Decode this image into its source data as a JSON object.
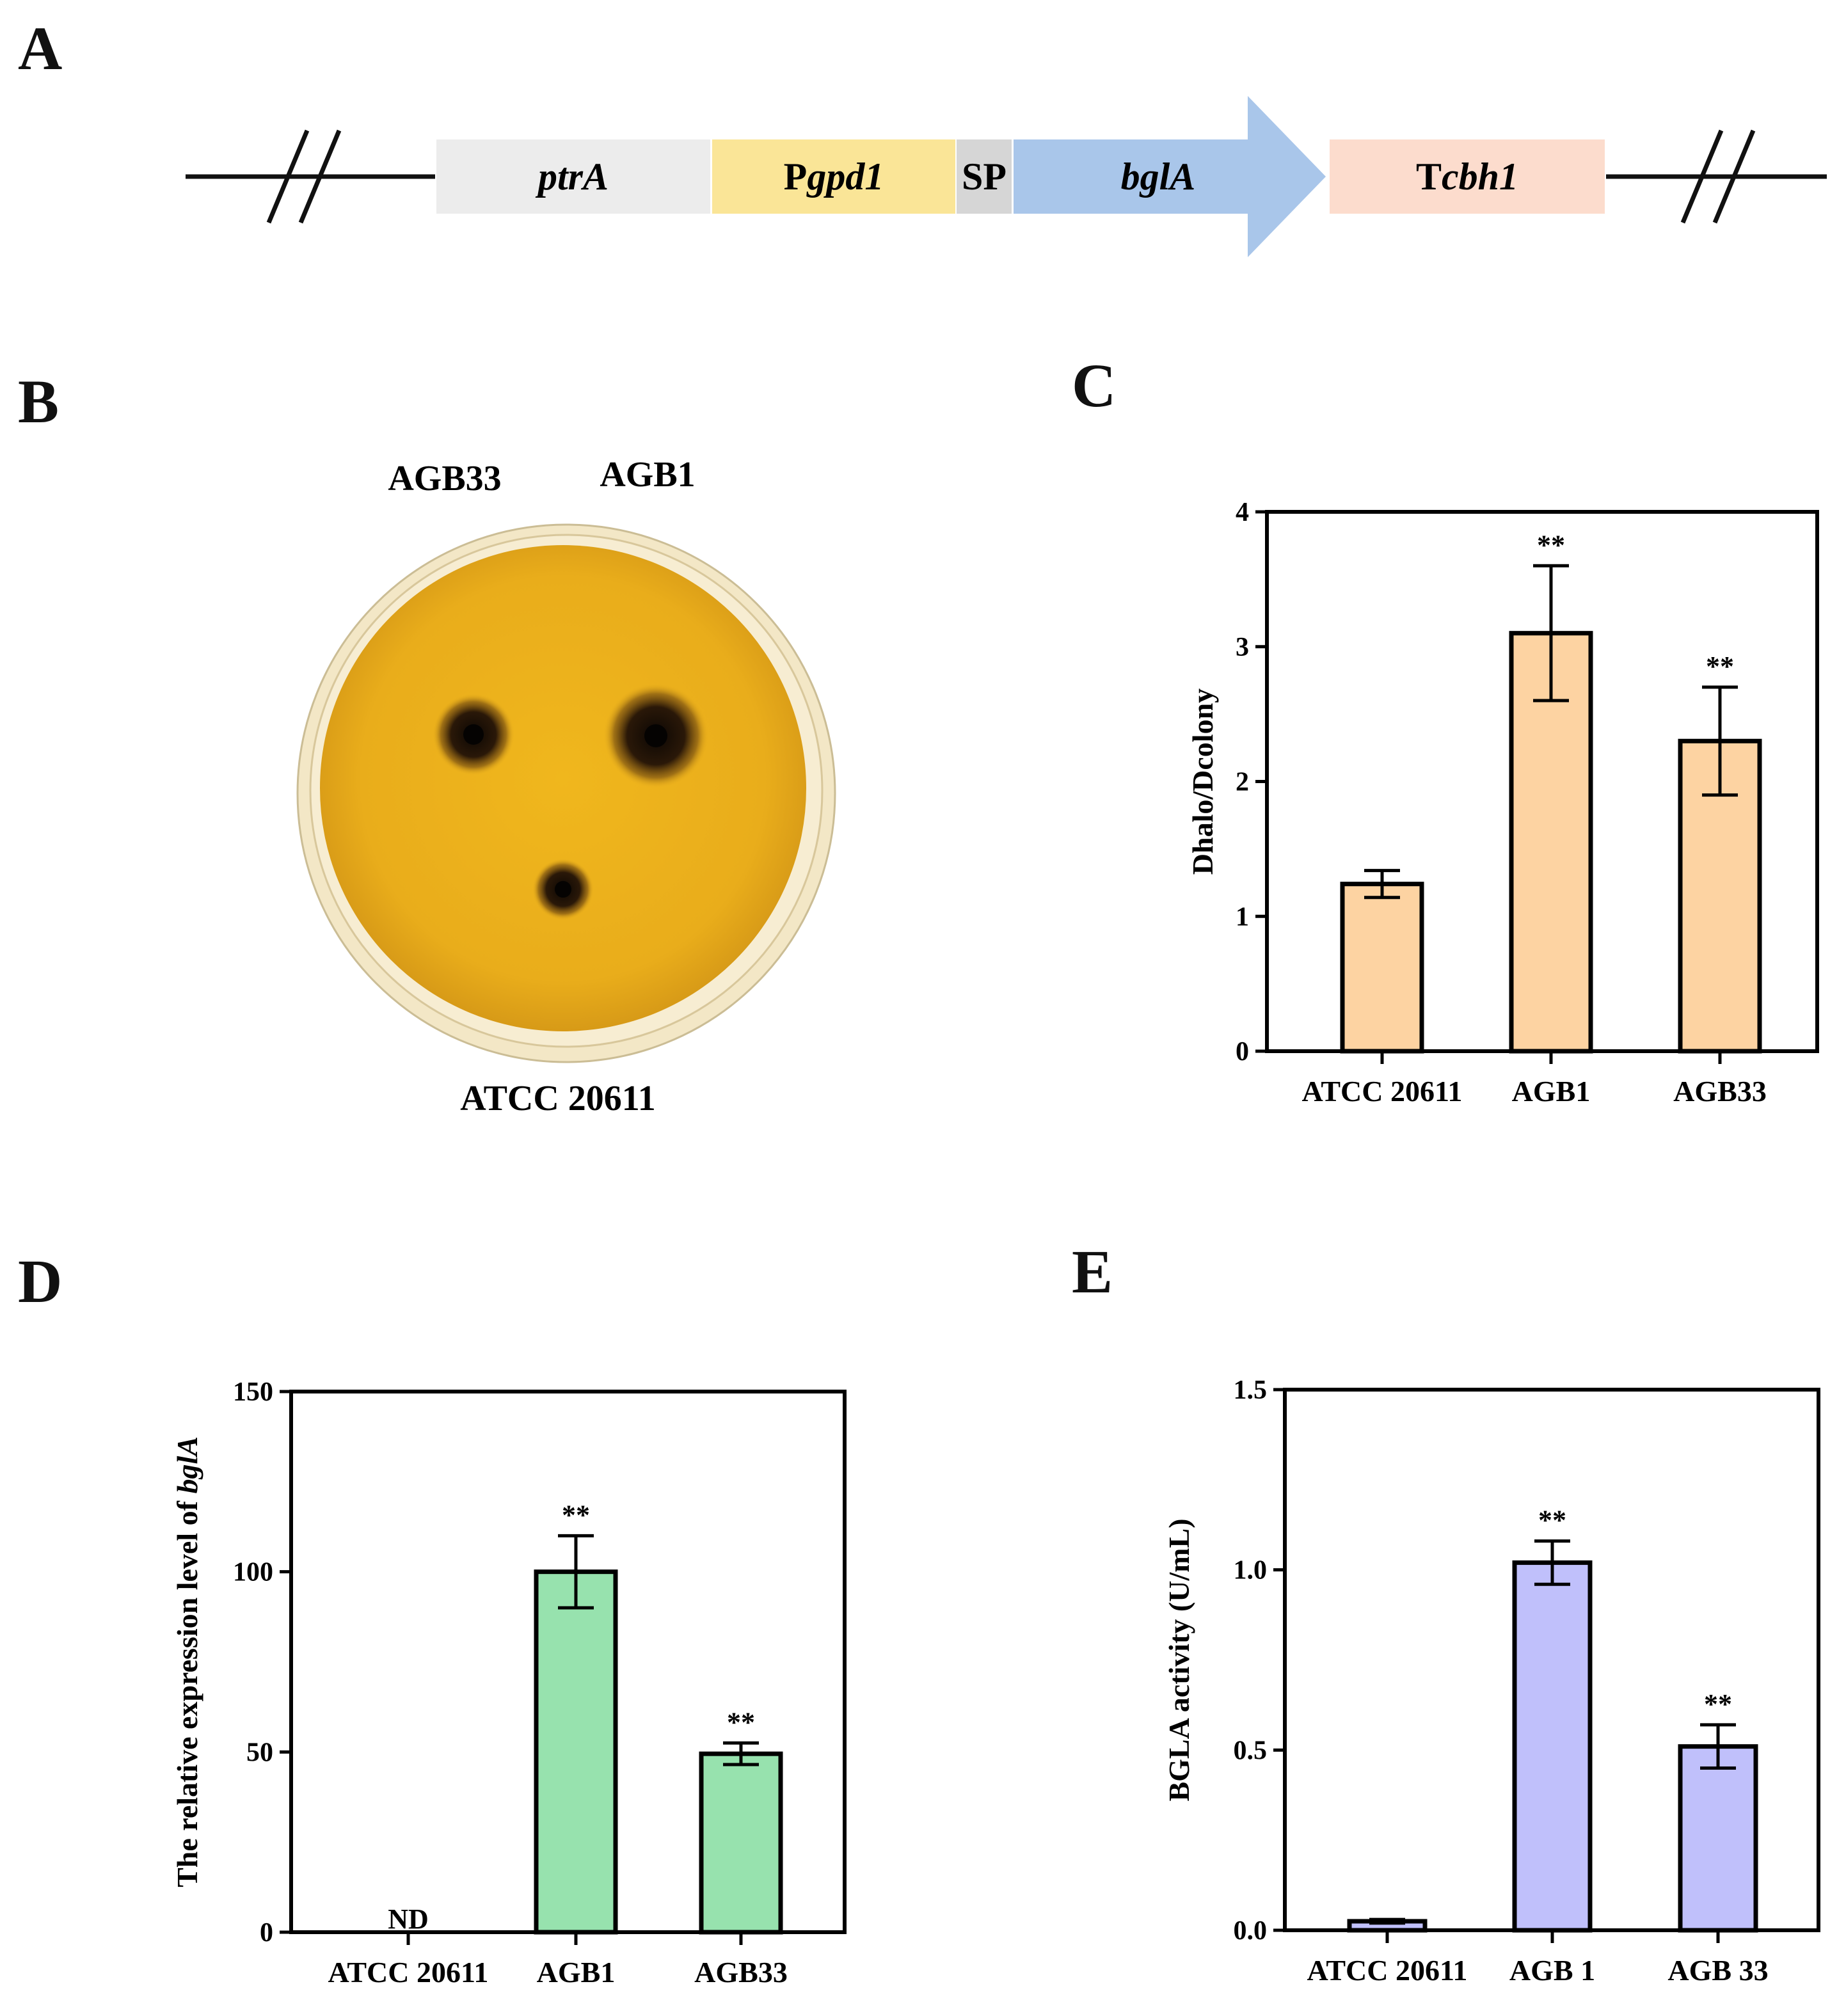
{
  "panels": {
    "a": "A",
    "b": "B",
    "c": "C",
    "d": "D",
    "e": "E"
  },
  "construct": {
    "segments": [
      {
        "name": "ptrA",
        "prefix": "",
        "italic": "ptrA",
        "color": "#ececec"
      },
      {
        "name": "Pgpd1",
        "prefix": "P",
        "italic": "gpd1",
        "color": "#fae597"
      },
      {
        "name": "SP",
        "prefix": "SP",
        "italic": "",
        "color": "#d6d6d6"
      },
      {
        "name": "bglA",
        "prefix": "",
        "italic": "bglA",
        "color": "#a9c6ea"
      },
      {
        "name": "Tcbh1",
        "prefix": "T",
        "italic": "cbh1",
        "color": "#fcdccd"
      }
    ],
    "line_color": "#111111"
  },
  "plate": {
    "labels": {
      "agb33": "AGB33",
      "agb1": "AGB1",
      "atcc": "ATCC 20611"
    },
    "agar_color": "#e5ad1c",
    "halo_color": "#1a1208"
  },
  "chart_data": [
    {
      "panel": "C",
      "type": "bar",
      "categories": [
        "ATCC 20611",
        "AGB1",
        "AGB33"
      ],
      "values": [
        1.24,
        3.1,
        2.3
      ],
      "errors": [
        0.1,
        0.5,
        0.4
      ],
      "significance": [
        "",
        "**",
        "**"
      ],
      "ylabel": "Dhalo/Dcolony",
      "ylim": [
        0,
        4
      ],
      "yticks": [
        "0",
        "1",
        "2",
        "3",
        "4"
      ],
      "ytick_values": [
        0,
        1,
        2,
        3,
        4
      ],
      "bar_color": "#fdd3a2"
    },
    {
      "panel": "D",
      "type": "bar",
      "categories": [
        "ATCC 20611",
        "AGB1",
        "AGB33"
      ],
      "values": [
        0,
        100,
        49.5
      ],
      "errors": [
        0,
        10,
        3
      ],
      "significance": [
        "",
        "**",
        "**"
      ],
      "bar_notes": [
        "ND",
        "",
        ""
      ],
      "ylabel": "The relative expression level of ",
      "ylabel_italic": "bglA",
      "ylim": [
        0,
        150
      ],
      "yticks": [
        "0",
        "50",
        "100",
        "150"
      ],
      "ytick_values": [
        0,
        50,
        100,
        150
      ],
      "bar_color": "#97e2ae"
    },
    {
      "panel": "E",
      "type": "bar",
      "categories": [
        "ATCC 20611",
        "AGB 1",
        "AGB 33"
      ],
      "values": [
        0.025,
        1.02,
        0.51
      ],
      "errors": [
        0.005,
        0.06,
        0.06
      ],
      "significance": [
        "",
        "**",
        "**"
      ],
      "ylabel": "BGLA activity (U/mL)",
      "ylim": [
        0,
        1.5
      ],
      "yticks": [
        "0.0",
        "0.5",
        "1.0",
        "1.5"
      ],
      "ytick_values": [
        0,
        0.5,
        1.0,
        1.5
      ],
      "bar_color": "#c0c0fb"
    }
  ]
}
